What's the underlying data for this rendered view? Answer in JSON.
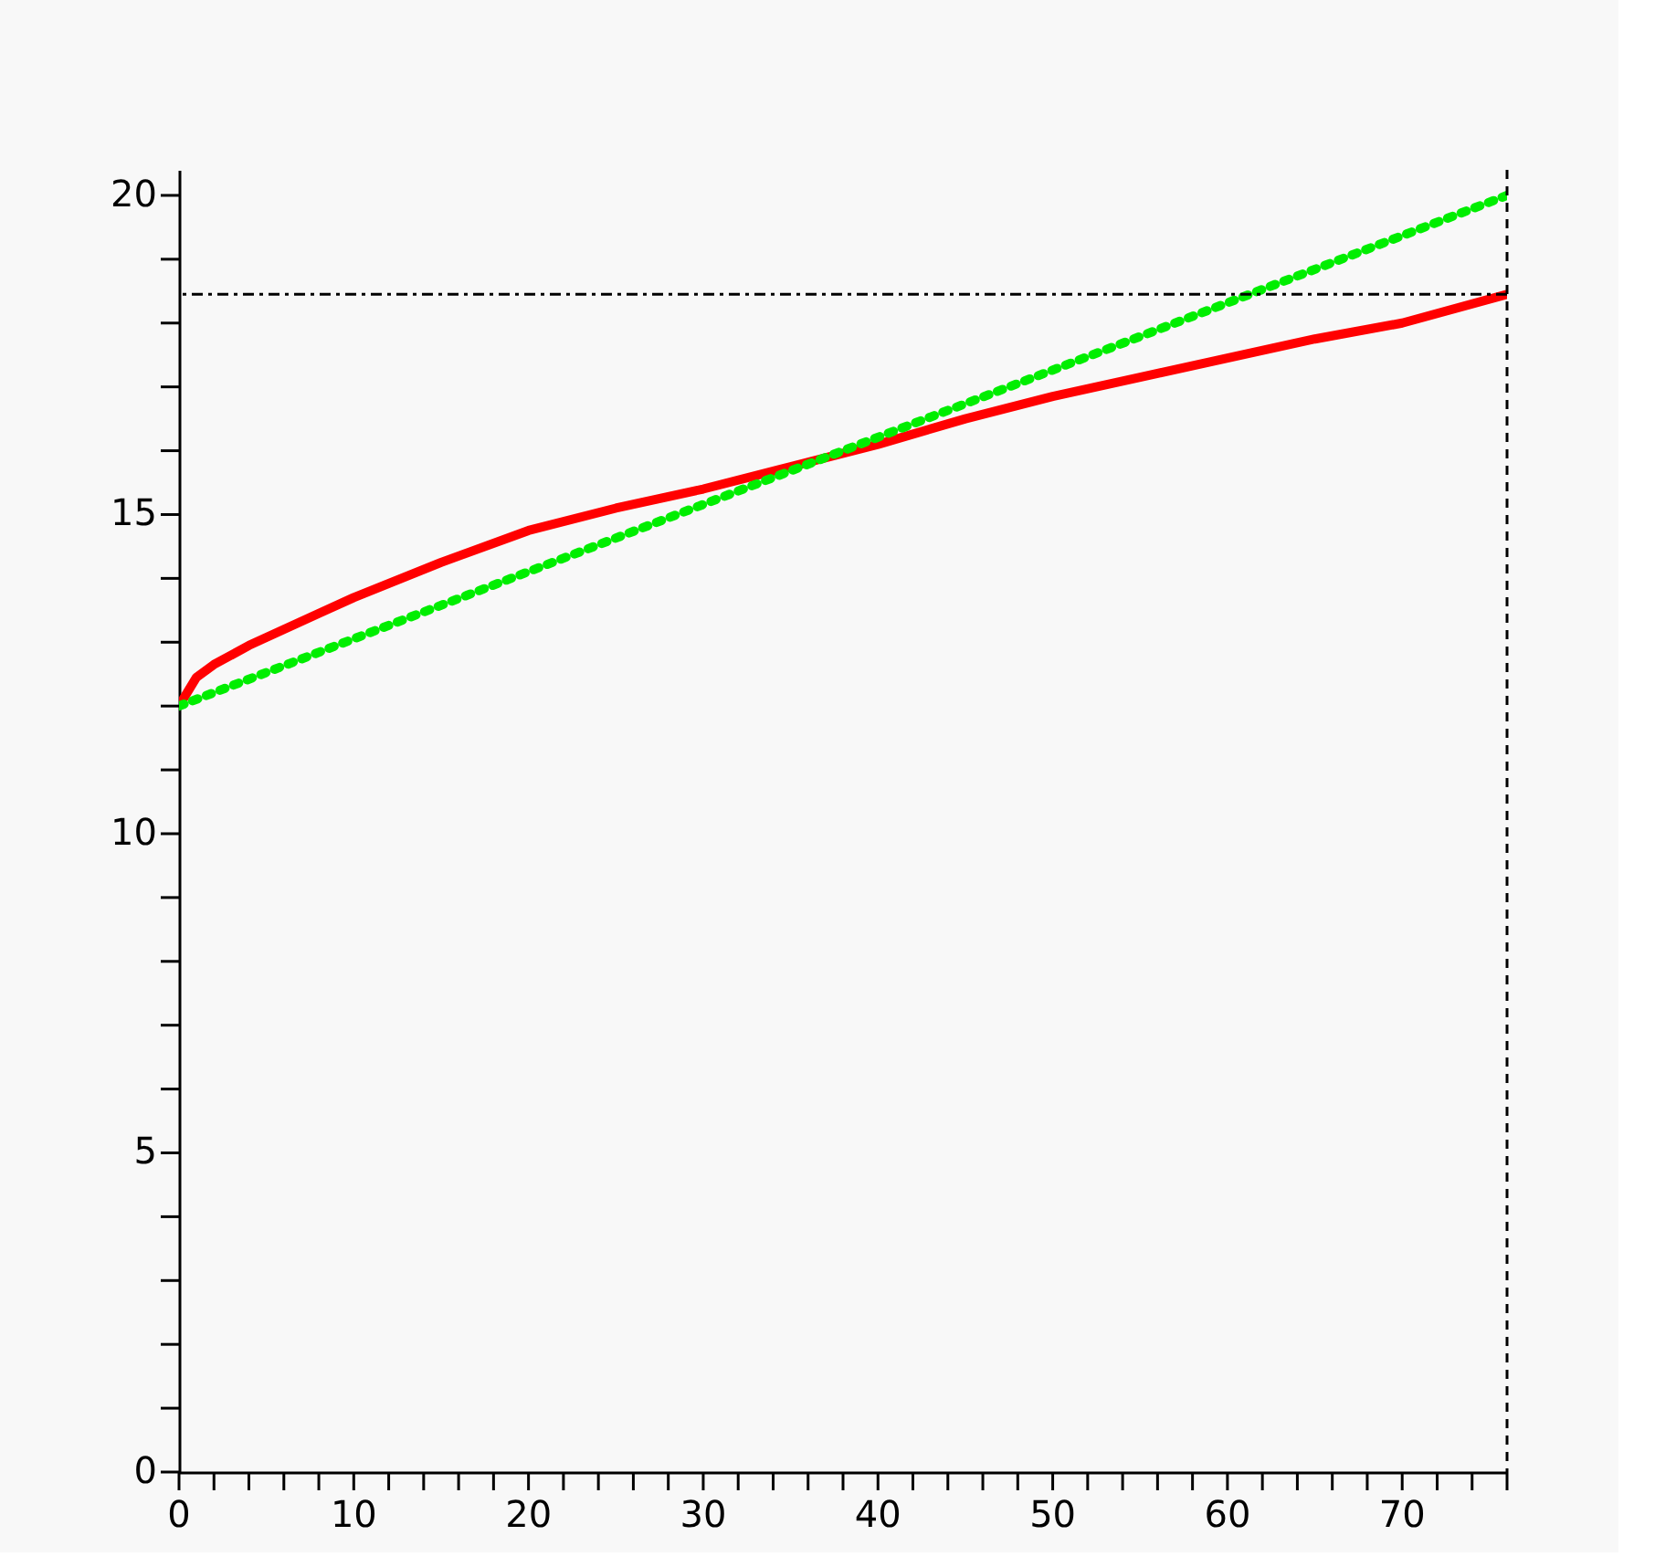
{
  "chart_data": {
    "type": "line",
    "xlim": [
      0,
      76
    ],
    "ylim": [
      0,
      20.4
    ],
    "xticks": [
      0,
      {
        "value": 2,
        "label": null
      },
      {
        "value": 4,
        "label": null
      },
      {
        "value": 6,
        "label": null
      },
      {
        "value": 8,
        "label": null
      },
      10,
      {
        "value": 12,
        "label": null
      },
      {
        "value": 14,
        "label": null
      },
      {
        "value": 16,
        "label": null
      },
      {
        "value": 18,
        "label": null
      },
      20,
      {
        "value": 22,
        "label": null
      },
      {
        "value": 24,
        "label": null
      },
      {
        "value": 26,
        "label": null
      },
      {
        "value": 28,
        "label": null
      },
      30,
      {
        "value": 32,
        "label": null
      },
      {
        "value": 34,
        "label": null
      },
      {
        "value": 36,
        "label": null
      },
      {
        "value": 38,
        "label": null
      },
      40,
      {
        "value": 42,
        "label": null
      },
      {
        "value": 44,
        "label": null
      },
      {
        "value": 46,
        "label": null
      },
      {
        "value": 48,
        "label": null
      },
      50,
      {
        "value": 52,
        "label": null
      },
      {
        "value": 54,
        "label": null
      },
      {
        "value": 56,
        "label": null
      },
      {
        "value": 58,
        "label": null
      },
      60,
      {
        "value": 62,
        "label": null
      },
      {
        "value": 64,
        "label": null
      },
      {
        "value": 66,
        "label": null
      },
      {
        "value": 68,
        "label": null
      },
      70,
      {
        "value": 72,
        "label": null
      },
      {
        "value": 74,
        "label": null
      },
      {
        "value": 76,
        "label": null
      }
    ],
    "yticks": [
      0,
      {
        "value": 1,
        "label": null
      },
      {
        "value": 2,
        "label": null
      },
      {
        "value": 3,
        "label": null
      },
      {
        "value": 4,
        "label": null
      },
      5,
      {
        "value": 6,
        "label": null
      },
      {
        "value": 7,
        "label": null
      },
      {
        "value": 8,
        "label": null
      },
      {
        "value": 9,
        "label": null
      },
      10,
      {
        "value": 11,
        "label": null
      },
      {
        "value": 12,
        "label": null
      },
      {
        "value": 13,
        "label": null
      },
      {
        "value": 14,
        "label": null
      },
      15,
      {
        "value": 16,
        "label": null
      },
      {
        "value": 17,
        "label": null
      },
      {
        "value": 18,
        "label": null
      },
      {
        "value": 19,
        "label": null
      },
      20
    ],
    "grid": false,
    "marker": "none",
    "series": [
      {
        "color": "#ff0000",
        "line_style": "solid",
        "x": [
          0,
          1,
          2,
          4,
          6,
          8,
          10,
          15,
          20,
          25,
          30,
          35,
          40,
          45,
          50,
          55,
          60,
          65,
          70,
          76
        ],
        "values": [
          12.0,
          12.45,
          12.65,
          12.95,
          13.2,
          13.45,
          13.7,
          14.25,
          14.75,
          15.1,
          15.4,
          15.75,
          16.1,
          16.5,
          16.85,
          17.15,
          17.45,
          17.75,
          18.0,
          18.45
        ]
      },
      {
        "color": "#00ee00",
        "line_style": "dotted",
        "x": [
          0,
          76
        ],
        "values": [
          12.0,
          20.0
        ]
      }
    ],
    "ref_lines": [
      {
        "axis": "y",
        "value": 18.45,
        "color": "#000000",
        "line_style": "dashdot"
      },
      {
        "axis": "x",
        "value": 76,
        "color": "#000000",
        "line_style": "dashed"
      }
    ]
  }
}
